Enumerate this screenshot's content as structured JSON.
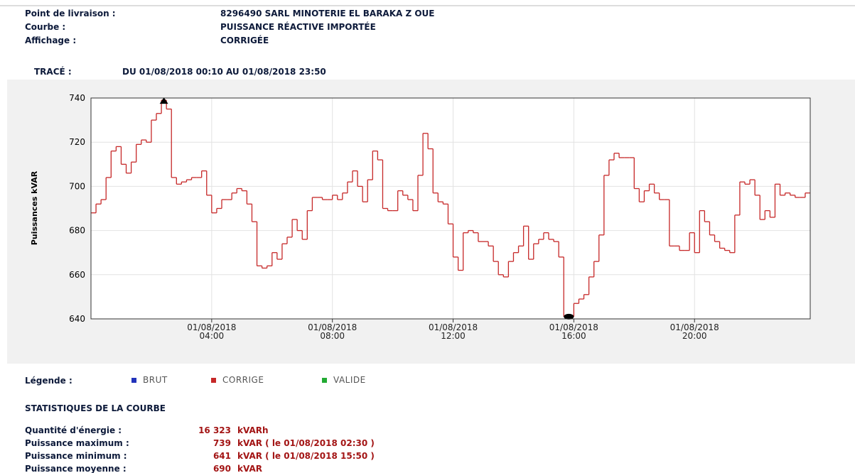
{
  "header": {
    "rows": [
      {
        "label": "Point de livraison :",
        "value": "8296490 SARL MINOTERIE EL BARAKA Z OUE"
      },
      {
        "label": "Courbe :",
        "value": "PUISSANCE RÉACTIVE IMPORTÉE"
      },
      {
        "label": "Affichage :",
        "value": "CORRIGÉE"
      }
    ],
    "trace_label": "TRACÉ :",
    "trace_value": "DU 01/08/2018 00:10 AU 01/08/2018 23:50"
  },
  "chart_data": {
    "type": "step",
    "ylabel": "Puissances kVAR",
    "xlim": [
      0,
      1430
    ],
    "xticks": [
      {
        "value": 240,
        "label": "01/08/2018\n04:00"
      },
      {
        "value": 480,
        "label": "01/08/2018\n08:00"
      },
      {
        "value": 720,
        "label": "01/08/2018\n12:00"
      },
      {
        "value": 960,
        "label": "01/08/2018\n16:00"
      },
      {
        "value": 1200,
        "label": "01/08/2018\n20:00"
      }
    ],
    "ylim": [
      640,
      740
    ],
    "yticks": [
      640,
      660,
      680,
      700,
      720,
      740
    ],
    "grid": true,
    "x": [
      10,
      20,
      30,
      40,
      50,
      60,
      70,
      80,
      90,
      100,
      110,
      120,
      130,
      140,
      150,
      160,
      170,
      180,
      190,
      200,
      210,
      220,
      230,
      240,
      250,
      260,
      270,
      280,
      290,
      300,
      310,
      320,
      330,
      340,
      350,
      360,
      370,
      380,
      390,
      400,
      410,
      420,
      430,
      440,
      450,
      460,
      470,
      480,
      490,
      500,
      510,
      520,
      530,
      540,
      550,
      560,
      570,
      580,
      590,
      600,
      610,
      620,
      630,
      640,
      650,
      660,
      670,
      680,
      690,
      700,
      710,
      720,
      730,
      740,
      750,
      760,
      770,
      780,
      790,
      800,
      810,
      820,
      830,
      840,
      850,
      860,
      870,
      880,
      890,
      900,
      910,
      920,
      930,
      940,
      950,
      960,
      970,
      980,
      990,
      1000,
      1010,
      1020,
      1030,
      1040,
      1050,
      1060,
      1070,
      1080,
      1090,
      1100,
      1110,
      1120,
      1130,
      1140,
      1150,
      1160,
      1170,
      1180,
      1190,
      1200,
      1210,
      1220,
      1230,
      1240,
      1250,
      1260,
      1270,
      1280,
      1290,
      1300,
      1310,
      1320,
      1330,
      1340,
      1350,
      1360,
      1370,
      1380,
      1390,
      1400,
      1410,
      1420,
      1430
    ],
    "series": [
      {
        "name": "CORRIGE",
        "color": "#c62828",
        "values": [
          688,
          692,
          694,
          704,
          716,
          718,
          710,
          706,
          711,
          719,
          721,
          720,
          730,
          733,
          739,
          735,
          704,
          701,
          702,
          703,
          704,
          704,
          707,
          696,
          688,
          690,
          694,
          694,
          697,
          699,
          698,
          692,
          684,
          664,
          663,
          664,
          670,
          667,
          674,
          677,
          685,
          680,
          676,
          689,
          695,
          695,
          694,
          694,
          696,
          694,
          697,
          702,
          707,
          700,
          693,
          703,
          716,
          712,
          690,
          689,
          689,
          698,
          696,
          694,
          689,
          705,
          724,
          717,
          697,
          693,
          692,
          683,
          668,
          662,
          679,
          680,
          679,
          675,
          675,
          673,
          666,
          660,
          659,
          666,
          670,
          673,
          682,
          667,
          674,
          676,
          679,
          676,
          675,
          668,
          641,
          641,
          647,
          649,
          651,
          659,
          666,
          678,
          705,
          712,
          715,
          713,
          713,
          713,
          699,
          693,
          698,
          701,
          697,
          694,
          694,
          673,
          673,
          671,
          671,
          679,
          670,
          689,
          684,
          678,
          675,
          672,
          671,
          670,
          687,
          702,
          701,
          703,
          696,
          685,
          689,
          686,
          701,
          696,
          697,
          696,
          695,
          695,
          697
        ]
      }
    ]
  },
  "legend": {
    "label": "Légende :",
    "items": [
      {
        "name": "BRUT",
        "color": "#2233bb"
      },
      {
        "name": "CORRIGE",
        "color": "#c62828"
      },
      {
        "name": "VALIDE",
        "color": "#22aa33"
      }
    ]
  },
  "stats": {
    "title": "STATISTIQUES DE LA COURBE",
    "rows": [
      {
        "label": "Quantité d'énergie :",
        "value": "16 323",
        "unit": "kVARh"
      },
      {
        "label": "Puissance maximum :",
        "value": "739",
        "unit": "kVAR ( le 01/08/2018 02:30 )"
      },
      {
        "label": "Puissance minimum :",
        "value": "641",
        "unit": "kVAR ( le 01/08/2018 15:50 )"
      },
      {
        "label": "Puissance moyenne :",
        "value": "690",
        "unit": "kVAR"
      }
    ]
  }
}
